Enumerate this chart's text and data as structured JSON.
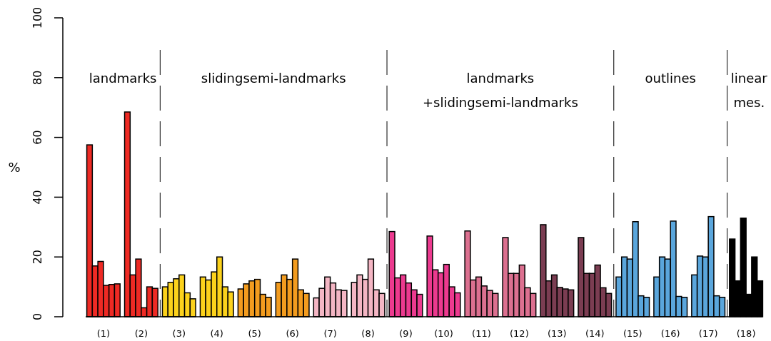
{
  "chart_data": {
    "type": "bar",
    "ylabel": "%",
    "categories": [
      "(1)",
      "(2)",
      "(3)",
      "(4)",
      "(5)",
      "(6)",
      "(7)",
      "(8)",
      "(9)",
      "(10)",
      "(11)",
      "(12)",
      "(13)",
      "(14)",
      "(15)",
      "(16)",
      "(17)",
      "(18)"
    ],
    "ylim": [
      0,
      100
    ],
    "yticks": [
      0,
      20,
      40,
      60,
      80,
      100
    ],
    "grid": false,
    "series": [
      {
        "colors": [
          "#ee2a24",
          "#ee2a24",
          "#fcd21c",
          "#fcd21c",
          "#f39c1f",
          "#f39c1f",
          "#f4b6c4",
          "#f4b6c4",
          "#ec3a8f",
          "#ec3a8f",
          "#dc7090",
          "#dc7090",
          "#7b3d52",
          "#7b3d52",
          "#5aa6dc",
          "#5aa6dc",
          "#5aa6dc",
          "#000000"
        ],
        "values": [
          57.5,
          68.5,
          10,
          13.3,
          9.3,
          11.5,
          6.3,
          11.5,
          28.5,
          27,
          28.7,
          26.5,
          30.8,
          26.5,
          13.3,
          13.3,
          14,
          26
        ]
      },
      {
        "colors": [
          "#ee2a24",
          "#ee2a24",
          "#fcd21c",
          "#fcd21c",
          "#f39c1f",
          "#f39c1f",
          "#f4b6c4",
          "#f4b6c4",
          "#ec3a8f",
          "#ec3a8f",
          "#dc7090",
          "#dc7090",
          "#7b3d52",
          "#7b3d52",
          "#5aa6dc",
          "#5aa6dc",
          "#5aa6dc",
          "#000000"
        ],
        "values": [
          17,
          14,
          11.5,
          12.3,
          11,
          14,
          9.5,
          14,
          13,
          15.7,
          12.3,
          14.5,
          12,
          14.5,
          20,
          20,
          20.3,
          12
        ]
      },
      {
        "colors": [
          "#ee2a24",
          "#ee2a24",
          "#fcd21c",
          "#fcd21c",
          "#f39c1f",
          "#f39c1f",
          "#f4b6c4",
          "#f4b6c4",
          "#ec3a8f",
          "#ec3a8f",
          "#dc7090",
          "#dc7090",
          "#7b3d52",
          "#7b3d52",
          "#5aa6dc",
          "#5aa6dc",
          "#5aa6dc",
          "#000000"
        ],
        "values": [
          18.5,
          19.3,
          12.7,
          15,
          12,
          12.5,
          13.3,
          12.5,
          14,
          14.7,
          13.3,
          14.5,
          14,
          14.5,
          19.3,
          19.3,
          20,
          33
        ]
      },
      {
        "colors": [
          "#ee2a24",
          "#ee2a24",
          "#fcd21c",
          "#fcd21c",
          "#f39c1f",
          "#f39c1f",
          "#f4b6c4",
          "#f4b6c4",
          "#ec3a8f",
          "#ec3a8f",
          "#dc7090",
          "#dc7090",
          "#7b3d52",
          "#7b3d52",
          "#5aa6dc",
          "#5aa6dc",
          "#5aa6dc",
          "#000000"
        ],
        "values": [
          10.5,
          3,
          14,
          20,
          12.5,
          19.3,
          11.3,
          19.3,
          11.3,
          17.5,
          10.3,
          17.3,
          9.8,
          17.3,
          31.8,
          32,
          33.5,
          7.5
        ]
      },
      {
        "colors": [
          "#ee2a24",
          "#ee2a24",
          "#fcd21c",
          "#fcd21c",
          "#f39c1f",
          "#f39c1f",
          "#f4b6c4",
          "#f4b6c4",
          "#ec3a8f",
          "#ec3a8f",
          "#dc7090",
          "#dc7090",
          "#7b3d52",
          "#7b3d52",
          "#5aa6dc",
          "#5aa6dc",
          "#5aa6dc",
          "#000000"
        ],
        "values": [
          10.8,
          10,
          8,
          10,
          7.5,
          9,
          9,
          9,
          9,
          10,
          8.8,
          9.7,
          9.3,
          9.7,
          7,
          6.8,
          7,
          20
        ]
      },
      {
        "colors": [
          "#ee2a24",
          "#ee2a24",
          "#fcd21c",
          "#fcd21c",
          "#f39c1f",
          "#f39c1f",
          "#f4b6c4",
          "#f4b6c4",
          "#ec3a8f",
          "#ec3a8f",
          "#dc7090",
          "#dc7090",
          "#7b3d52",
          "#7b3d52",
          "#5aa6dc",
          "#5aa6dc",
          "#5aa6dc",
          "#000000"
        ],
        "values": [
          11,
          9.5,
          6,
          8.3,
          6.5,
          7.8,
          8.8,
          7.8,
          7.5,
          8,
          7.8,
          7.8,
          9,
          7.8,
          6.5,
          6.5,
          6.5,
          12
        ]
      }
    ],
    "annotations": [
      "landmarks",
      "slidingsemi-landmarks",
      "landmarks\n+slidingsemi-landmarks",
      "outlines",
      "linear\nmes."
    ]
  }
}
